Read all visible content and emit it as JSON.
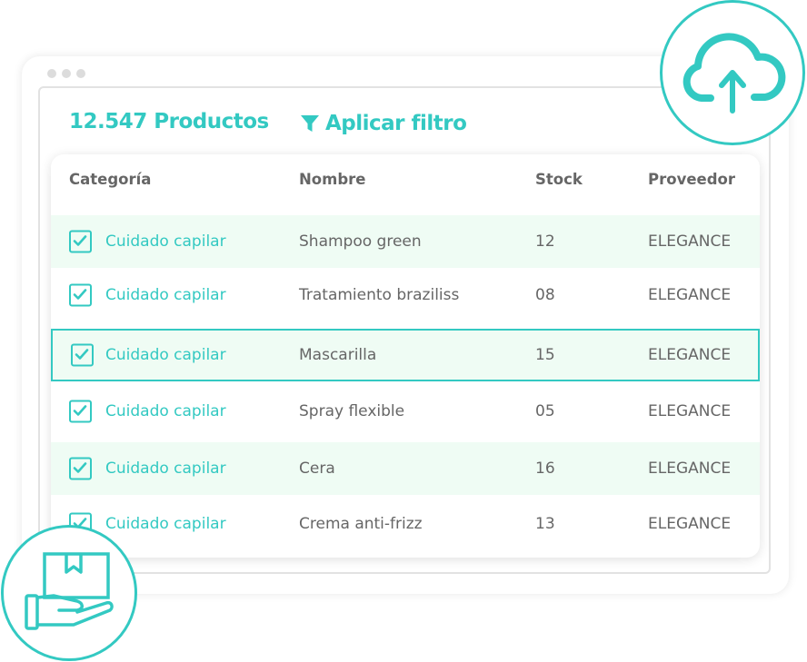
{
  "colors": {
    "accent": "#33c9c2",
    "row_highlight": "#effcf4",
    "text": "#666666"
  },
  "header": {
    "count": "12.547 Productos",
    "filter_label": "Aplicar filtro",
    "filter_icon": "funnel-icon"
  },
  "table": {
    "columns": [
      "Categoría",
      "Nombre",
      "Stock",
      "Proveedor"
    ],
    "rows": [
      {
        "checked": true,
        "category": "Cuidado capilar",
        "name": "Shampoo green",
        "stock": "12",
        "provider": "ELEGANCE"
      },
      {
        "checked": true,
        "category": "Cuidado capilar",
        "name": "Tratamiento braziliss",
        "stock": "08",
        "provider": "ELEGANCE"
      },
      {
        "checked": true,
        "category": "Cuidado capilar",
        "name": "Mascarilla",
        "stock": "15",
        "provider": "ELEGANCE",
        "selected": true
      },
      {
        "checked": true,
        "category": "Cuidado capilar",
        "name": "Spray flexible",
        "stock": "05",
        "provider": "ELEGANCE"
      },
      {
        "checked": true,
        "category": "Cuidado capilar",
        "name": "Cera",
        "stock": "16",
        "provider": "ELEGANCE"
      },
      {
        "checked": true,
        "category": "Cuidado capilar",
        "name": "Crema anti-frizz",
        "stock": "13",
        "provider": "ELEGANCE"
      }
    ]
  },
  "badges": {
    "top": "cloud-upload-icon",
    "bottom": "hand-box-icon"
  }
}
